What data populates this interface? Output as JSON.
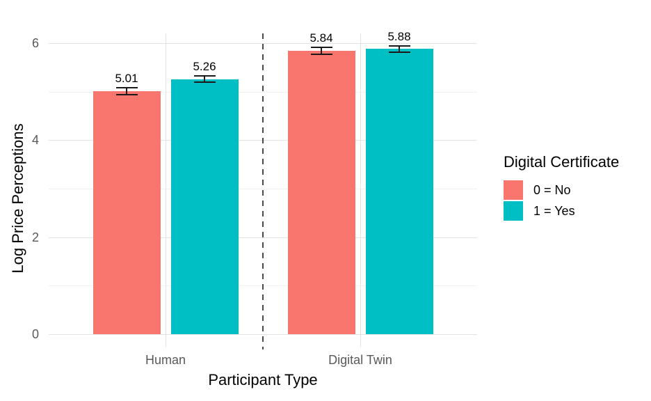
{
  "chart_data": {
    "type": "bar",
    "title": "",
    "xlabel": "Participant Type",
    "ylabel": "Log Price Perceptions",
    "categories": [
      "Human",
      "Digital Twin"
    ],
    "series": [
      {
        "name": "0 = No",
        "color": "#F8766D",
        "values": [
          5.01,
          5.84
        ],
        "errors": [
          0.07,
          0.07
        ],
        "labels": [
          "5.01",
          "5.84"
        ]
      },
      {
        "name": "1 = Yes",
        "color": "#00BFC4",
        "values": [
          5.26,
          5.88
        ],
        "errors": [
          0.06,
          0.06
        ],
        "labels": [
          "5.26",
          "5.88"
        ]
      }
    ],
    "ylim": [
      0,
      6.2
    ],
    "yticks_major": [
      0,
      2,
      4,
      6
    ],
    "yticks_minor": [
      1,
      3,
      5
    ],
    "grid": "horizontal major+minor, vertical at category centers",
    "legend_position": "right",
    "legend_title": "Digital Certificate",
    "separator": {
      "style": "dashed",
      "between": [
        "Human",
        "Digital Twin"
      ],
      "color": "#4A4A4A"
    }
  },
  "colors": {
    "background": "#FFFFFF",
    "grid_major": "#E3E3E3",
    "grid_minor": "#F1F1F1",
    "axis_text": "#595959",
    "axis_title": "#000000",
    "error_bar": "#1A1A1A",
    "value_label": "#000000",
    "separator": "#4A4A4A"
  }
}
